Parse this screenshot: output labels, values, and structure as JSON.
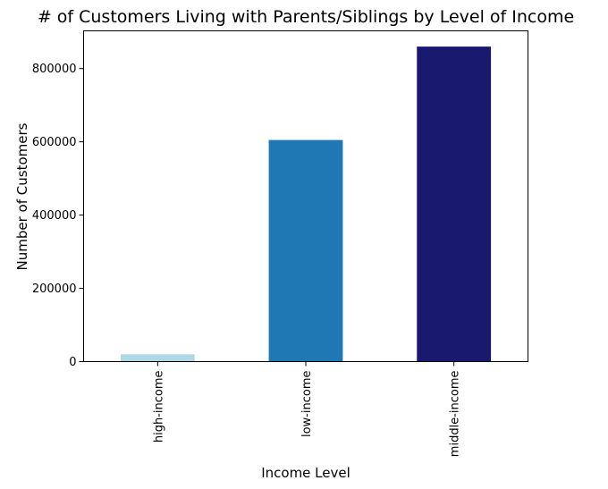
{
  "chart_data": {
    "type": "bar",
    "title": "# of Customers Living with Parents/Siblings by Level of Income",
    "xlabel": "Income Level",
    "ylabel": "Number of Customers",
    "categories": [
      "high-income",
      "low-income",
      "middle-income"
    ],
    "values": [
      20000,
      605000,
      860000
    ],
    "colors": [
      "#add8e6",
      "#1f77b4",
      "#191970"
    ],
    "ylim": [
      0,
      903000
    ],
    "yticks": [
      0,
      200000,
      400000,
      600000,
      800000
    ],
    "ytick_labels": [
      "0",
      "200000",
      "400000",
      "600000",
      "800000"
    ],
    "grid": false,
    "legend": "none"
  }
}
